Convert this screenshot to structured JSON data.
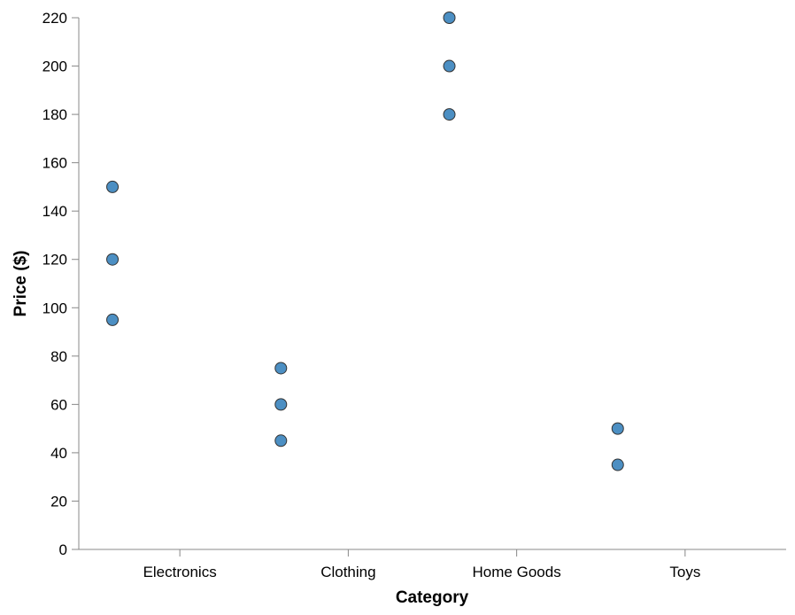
{
  "chart_data": {
    "type": "scatter",
    "xlabel": "Category",
    "ylabel": "Price ($)",
    "categories": [
      "Electronics",
      "Clothing",
      "Home Goods",
      "Toys"
    ],
    "ylim": [
      0,
      220
    ],
    "yticks": [
      0,
      20,
      40,
      60,
      80,
      100,
      120,
      140,
      160,
      180,
      200,
      220
    ],
    "grid": false,
    "point_color": "#4c8fc3",
    "points": [
      {
        "category": "Electronics",
        "y": 150
      },
      {
        "category": "Electronics",
        "y": 120
      },
      {
        "category": "Electronics",
        "y": 95
      },
      {
        "category": "Clothing",
        "y": 75
      },
      {
        "category": "Clothing",
        "y": 60
      },
      {
        "category": "Clothing",
        "y": 45
      },
      {
        "category": "Home Goods",
        "y": 220
      },
      {
        "category": "Home Goods",
        "y": 200
      },
      {
        "category": "Home Goods",
        "y": 180
      },
      {
        "category": "Toys",
        "y": 50
      },
      {
        "category": "Toys",
        "y": 35
      }
    ]
  }
}
